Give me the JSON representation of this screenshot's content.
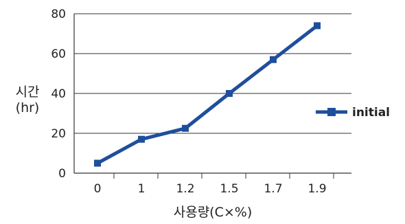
{
  "chart_data": {
    "type": "line",
    "categories": [
      "0",
      "1",
      "1.2",
      "1.5",
      "1.7",
      "1.9"
    ],
    "series": [
      {
        "name": "initial",
        "values": [
          5,
          17,
          22.5,
          40,
          57,
          74
        ]
      }
    ],
    "ylim": [
      0,
      80
    ],
    "yticks": [
      0,
      20,
      40,
      60,
      80
    ],
    "xlabel": "사용량(C×%)",
    "ylabel_line1": "시간",
    "ylabel_line2": "(hr)",
    "grid": true,
    "legend_position": "right",
    "series_color": "#1f4e9c"
  }
}
